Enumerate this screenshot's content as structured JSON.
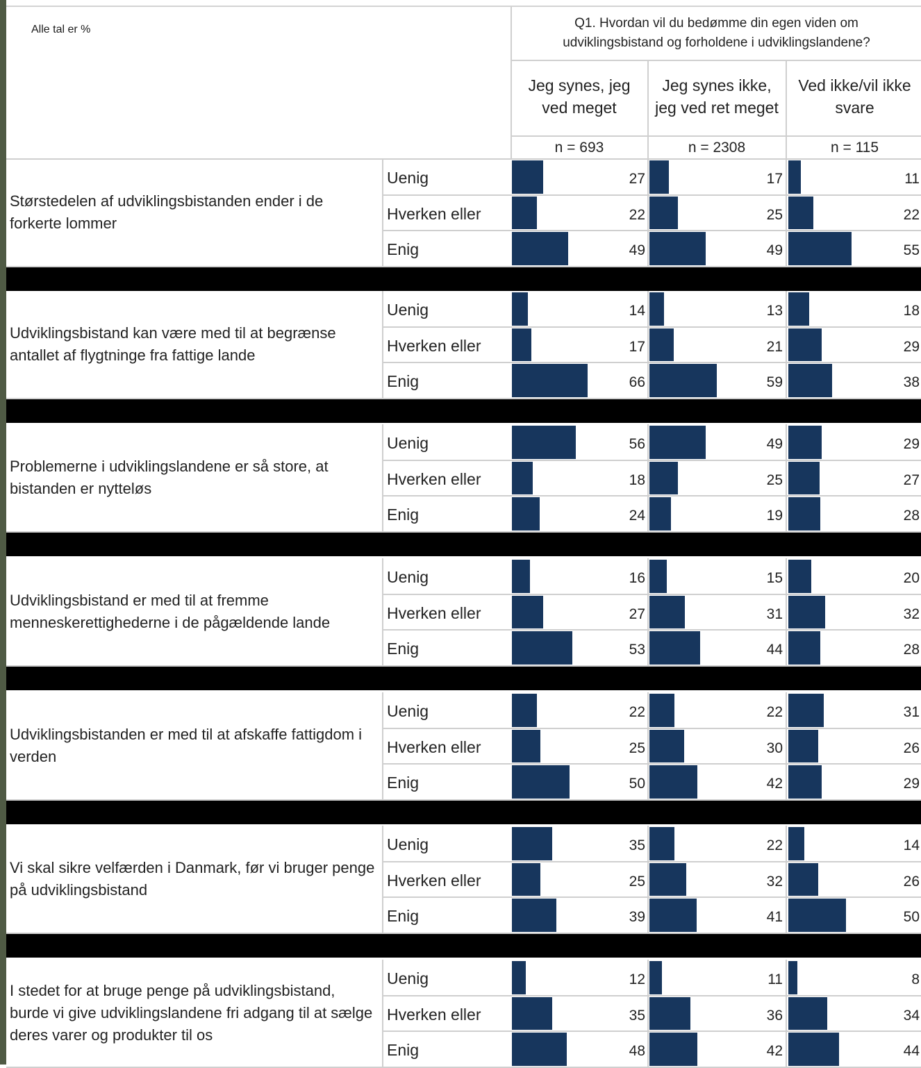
{
  "header": {
    "unit_note": "Alle tal er %",
    "question_line1": "Q1. Hvordan vil du bedømme din egen viden om",
    "question_line2": "udviklingsbistand og forholdene i udviklingslandene?"
  },
  "colors": {
    "bar": "#17365d",
    "separator": "#000000",
    "grid": "#cfcfcf"
  },
  "chart_data": {
    "type": "bar",
    "title": "Q1. Hvordan vil du bedømme din egen viden om udviklingsbistand og forholdene i udviklingslandene?",
    "unit": "Alle tal er %",
    "columns": [
      {
        "name_line1": "Jeg synes, jeg",
        "name_line2": "ved meget",
        "n": "n = 693"
      },
      {
        "name_line1": "Jeg synes ikke,",
        "name_line2": "jeg ved ret meget",
        "n": "n = 2308"
      },
      {
        "name_line1": "Ved ikke/vil ikke",
        "name_line2": "svare",
        "n": "n = 115"
      }
    ],
    "response_labels": [
      "Uenig",
      "Hverken eller",
      "Enig"
    ],
    "statements": [
      {
        "text": "Størstedelen af udviklingsbistanden ender i de forkerte lommer",
        "values": [
          [
            27,
            17,
            11
          ],
          [
            22,
            25,
            22
          ],
          [
            49,
            49,
            55
          ]
        ]
      },
      {
        "text": "Udviklingsbistand kan være med til at begrænse antallet af flygtninge fra fattige lande",
        "values": [
          [
            14,
            13,
            18
          ],
          [
            17,
            21,
            29
          ],
          [
            66,
            59,
            38
          ]
        ]
      },
      {
        "text": "Problemerne i udviklingslandene er så store, at bistanden er nytteløs",
        "values": [
          [
            56,
            49,
            29
          ],
          [
            18,
            25,
            27
          ],
          [
            24,
            19,
            28
          ]
        ]
      },
      {
        "text": "Udviklingsbistand er med til at fremme menneskerettighederne i de pågældende lande",
        "values": [
          [
            16,
            15,
            20
          ],
          [
            27,
            31,
            32
          ],
          [
            53,
            44,
            28
          ]
        ]
      },
      {
        "text": "Udviklingsbistanden er med til at afskaffe fattigdom i verden",
        "values": [
          [
            22,
            22,
            31
          ],
          [
            25,
            30,
            26
          ],
          [
            50,
            42,
            29
          ]
        ]
      },
      {
        "text": "Vi skal sikre velfærden i Danmark, før vi bruger penge på udviklingsbistand",
        "values": [
          [
            35,
            22,
            14
          ],
          [
            25,
            32,
            26
          ],
          [
            39,
            41,
            50
          ]
        ]
      },
      {
        "text": "I stedet for at bruge penge på udviklingsbistand, burde vi give udviklingslandene fri adgang til at sælge deres varer og produkter til os",
        "values": [
          [
            12,
            11,
            8
          ],
          [
            35,
            36,
            34
          ],
          [
            48,
            42,
            44
          ]
        ]
      }
    ]
  }
}
